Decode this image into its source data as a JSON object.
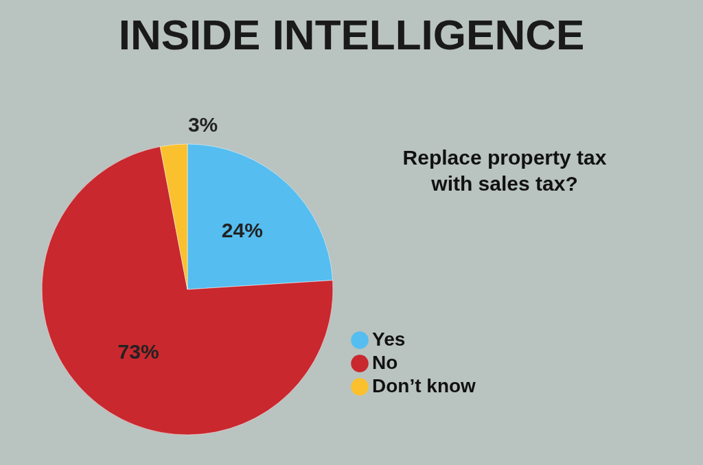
{
  "chart_data": {
    "type": "pie",
    "title": "INSIDE INTELLIGENCE",
    "subtitle": "Replace property tax with sales tax?",
    "categories": [
      "Yes",
      "No",
      "Don’t know"
    ],
    "values": [
      24,
      73,
      3
    ],
    "colors": [
      "#55bdf0",
      "#c8282e",
      "#fbc02d"
    ],
    "value_labels": [
      "24%",
      "73%",
      "3%"
    ],
    "legend": "bottom right"
  }
}
